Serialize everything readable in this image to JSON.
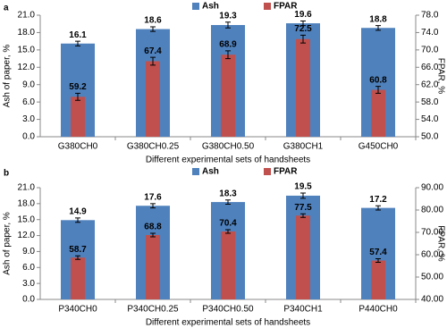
{
  "chart_data": [
    {
      "type": "bar",
      "panel_label": "a",
      "categories": [
        "G380CH0",
        "G380CH0.25",
        "G380CH0.50",
        "G380CH1",
        "G450CH0"
      ],
      "x_label": "Different experimental sets of handsheets",
      "y_label": "Ash of paper, %",
      "y2_label": "FPAR, %",
      "ylim": [
        0,
        21
      ],
      "yticks": [
        {
          "value": 0,
          "label": "0.0"
        },
        {
          "value": 3,
          "label": "3.0"
        },
        {
          "value": 6,
          "label": "6.0"
        },
        {
          "value": 9,
          "label": "9.0"
        },
        {
          "value": 12,
          "label": "12.0"
        },
        {
          "value": 15,
          "label": "15.0"
        },
        {
          "value": 18,
          "label": "18.0"
        },
        {
          "value": 21,
          "label": "21.0"
        }
      ],
      "y2lim": [
        50,
        78
      ],
      "y2ticks": [
        {
          "value": 50,
          "label": "50.0"
        },
        {
          "value": 54,
          "label": "54.0"
        },
        {
          "value": 58,
          "label": "58.0"
        },
        {
          "value": 62,
          "label": "62.0"
        },
        {
          "value": 66,
          "label": "66.0"
        },
        {
          "value": 70,
          "label": "70.0"
        },
        {
          "value": 74,
          "label": "74.0"
        },
        {
          "value": 78,
          "label": "78.0"
        }
      ],
      "legend": "top",
      "series": [
        {
          "name": "Ash",
          "color": "#4f81bd",
          "values": [
            16.1,
            18.6,
            19.3,
            19.6,
            18.8
          ],
          "errors": [
            0.4,
            0.4,
            0.5,
            0.4,
            0.4
          ]
        },
        {
          "name": "FPAR",
          "color": "#c0504d",
          "axis": "y2",
          "values": [
            59.2,
            67.4,
            68.9,
            72.5,
            60.8
          ],
          "errors": [
            0.8,
            0.9,
            0.9,
            0.9,
            0.8
          ]
        }
      ]
    },
    {
      "type": "bar",
      "panel_label": "b",
      "categories": [
        "P340CH0",
        "P340CH0.25",
        "P340CH0.50",
        "P340CH1",
        "P440CH0"
      ],
      "x_label": "Different experimental sets of handsheets",
      "y_label": "Ash of paper, %",
      "y2_label": "FPAR, %",
      "ylim": [
        0,
        21
      ],
      "yticks": [
        {
          "value": 0,
          "label": "0.0"
        },
        {
          "value": 3,
          "label": "3.0"
        },
        {
          "value": 6,
          "label": "6.0"
        },
        {
          "value": 9,
          "label": "9.0"
        },
        {
          "value": 12,
          "label": "12.0"
        },
        {
          "value": 15,
          "label": "15.0"
        },
        {
          "value": 18,
          "label": "18.0"
        },
        {
          "value": 21,
          "label": "21.0"
        }
      ],
      "y2lim": [
        40,
        90
      ],
      "y2ticks": [
        {
          "value": 40,
          "label": "40.00"
        },
        {
          "value": 50,
          "label": "50.00"
        },
        {
          "value": 60,
          "label": "60.00"
        },
        {
          "value": 70,
          "label": "70.00"
        },
        {
          "value": 80,
          "label": "80.00"
        },
        {
          "value": 90,
          "label": "90.00"
        }
      ],
      "legend": "top",
      "series": [
        {
          "name": "Ash",
          "color": "#4f81bd",
          "values": [
            14.9,
            17.6,
            18.3,
            19.5,
            17.2
          ],
          "errors": [
            0.4,
            0.4,
            0.4,
            0.5,
            0.4
          ]
        },
        {
          "name": "FPAR",
          "color": "#c0504d",
          "axis": "y2",
          "values": [
            58.7,
            68.8,
            70.4,
            77.5,
            57.4
          ],
          "errors": [
            0.8,
            0.8,
            0.8,
            0.8,
            0.8
          ]
        }
      ]
    }
  ]
}
